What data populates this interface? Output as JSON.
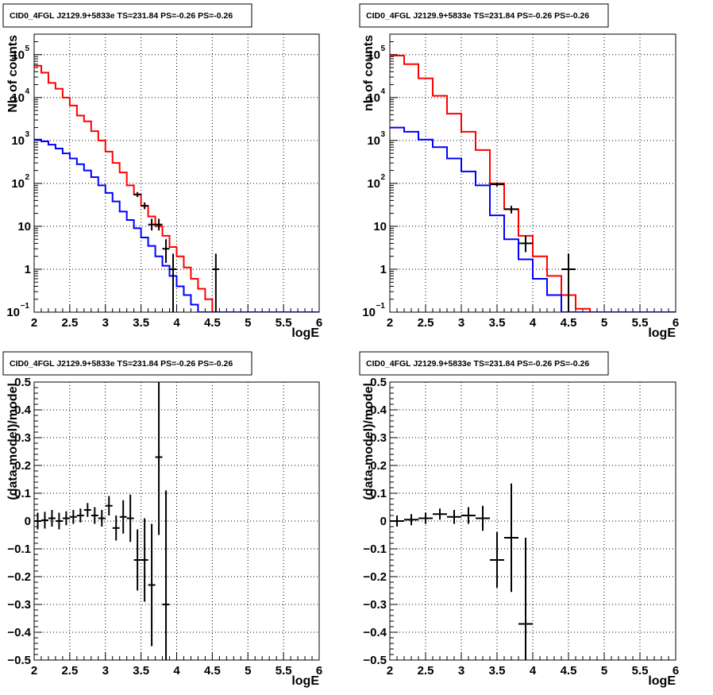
{
  "chart_data": [
    {
      "type": "line",
      "title": "CID0_4FGL J2129.9+5833e TS=231.84 PS=-0.26 PS=-0.26",
      "xlabel": "logE",
      "ylabel": "Nb of counts",
      "xlim": [
        2,
        6
      ],
      "ylim": [
        0.1,
        300000
      ],
      "yscale": "log",
      "grid": true,
      "xticks": [
        "2",
        "2.5",
        "3",
        "3.5",
        "4",
        "4.5",
        "5",
        "5.5",
        "6"
      ],
      "yticks": [
        {
          "v": 0.1,
          "label": "10",
          "sup": "−1"
        },
        {
          "v": 1,
          "label": "1",
          "sup": ""
        },
        {
          "v": 10,
          "label": "10",
          "sup": ""
        },
        {
          "v": 100,
          "label": "10",
          "sup": "2"
        },
        {
          "v": 1000,
          "label": "10",
          "sup": "3"
        },
        {
          "v": 10000,
          "label": "10",
          "sup": "4"
        },
        {
          "v": 100000,
          "label": "10",
          "sup": "5"
        }
      ],
      "bin_edges": [
        2.0,
        2.1,
        2.2,
        2.3,
        2.4,
        2.5,
        2.6,
        2.7,
        2.8,
        2.9,
        3.0,
        3.1,
        3.2,
        3.3,
        3.4,
        3.5,
        3.6,
        3.7,
        3.8,
        3.9,
        4.0,
        4.1,
        4.2,
        4.3,
        4.4,
        4.5,
        4.6,
        4.7,
        4.8,
        4.9,
        5.0,
        5.1,
        5.2,
        5.3,
        5.4,
        5.5,
        5.6,
        5.7,
        5.8,
        5.9,
        6.0
      ],
      "series": [
        {
          "color": "#ff0000",
          "kind": "hist",
          "values": [
            55000,
            38000,
            22000,
            16000,
            10000,
            6500,
            3800,
            2800,
            1650,
            1000,
            550,
            300,
            180,
            90,
            55,
            30,
            17,
            10,
            6,
            3.3,
            2,
            1.1,
            0.6,
            0.35,
            0.2,
            0.1,
            0.1,
            0.1,
            0.1,
            0.1,
            0.1,
            0.1,
            0.1,
            0.1,
            0.1,
            0.1,
            0.1,
            0.1,
            0.1,
            0.1
          ]
        },
        {
          "color": "#0000ff",
          "kind": "hist",
          "values": [
            1050,
            950,
            800,
            650,
            500,
            380,
            280,
            200,
            140,
            90,
            60,
            38,
            22,
            14,
            9,
            5.5,
            3.5,
            2,
            1.2,
            0.7,
            0.4,
            0.25,
            0.15,
            0.1,
            0.1,
            0.1,
            0.1,
            0.1,
            0.1,
            0.1,
            0.1,
            0.1,
            0.1,
            0.1,
            0.1,
            0.1,
            0.1,
            0.1,
            0.1,
            0.1
          ]
        }
      ],
      "data_points": [
        {
          "x": 3.45,
          "y": 55,
          "ylo": 48,
          "yhi": 63
        },
        {
          "x": 3.55,
          "y": 30,
          "ylo": 25,
          "yhi": 36
        },
        {
          "x": 3.65,
          "y": 11,
          "ylo": 8,
          "yhi": 15
        },
        {
          "x": 3.75,
          "y": 11,
          "ylo": 8,
          "yhi": 15
        },
        {
          "x": 3.85,
          "y": 3,
          "ylo": 1.4,
          "yhi": 5
        },
        {
          "x": 3.95,
          "y": 1,
          "ylo": 0.1,
          "yhi": 2.3
        },
        {
          "x": 4.55,
          "y": 1,
          "ylo": 0.1,
          "yhi": 2.3
        }
      ]
    },
    {
      "type": "line",
      "title": "CID0_4FGL J2129.9+5833e TS=231.84 PS=-0.26 PS=-0.26",
      "xlabel": "logE",
      "ylabel": "nb of counts",
      "xlim": [
        2,
        6
      ],
      "ylim": [
        0.1,
        300000
      ],
      "yscale": "log",
      "grid": true,
      "xticks": [
        "2",
        "2.5",
        "3",
        "3.5",
        "4",
        "4.5",
        "5",
        "5.5",
        "6"
      ],
      "yticks": [
        {
          "v": 0.1,
          "label": "10",
          "sup": "−1"
        },
        {
          "v": 1,
          "label": "1",
          "sup": ""
        },
        {
          "v": 10,
          "label": "10",
          "sup": ""
        },
        {
          "v": 100,
          "label": "10",
          "sup": "2"
        },
        {
          "v": 1000,
          "label": "10",
          "sup": "3"
        },
        {
          "v": 10000,
          "label": "10",
          "sup": "4"
        },
        {
          "v": 100000,
          "label": "10",
          "sup": "5"
        }
      ],
      "bin_edges": [
        2.0,
        2.2,
        2.4,
        2.6,
        2.8,
        3.0,
        3.2,
        3.4,
        3.6,
        3.8,
        4.0,
        4.2,
        4.4,
        4.6,
        4.8,
        5.0,
        5.2,
        5.4,
        5.6,
        5.8,
        6.0
      ],
      "series": [
        {
          "color": "#ff0000",
          "kind": "hist",
          "values": [
            95000,
            60000,
            28000,
            11000,
            4200,
            1600,
            600,
            100,
            25,
            6,
            2,
            0.7,
            0.25,
            0.12,
            0.1,
            0.1,
            0.1,
            0.1,
            0.1,
            0.1
          ]
        },
        {
          "color": "#0000ff",
          "kind": "hist",
          "values": [
            2000,
            1600,
            1050,
            700,
            380,
            190,
            90,
            18,
            5,
            1.7,
            0.6,
            0.25,
            0.1,
            0.1,
            0.1,
            0.1,
            0.1,
            0.1,
            0.1,
            0.1
          ]
        }
      ],
      "data_points": [
        {
          "x": 3.5,
          "y": 95,
          "ylo": 85,
          "yhi": 105
        },
        {
          "x": 3.7,
          "y": 25,
          "ylo": 20,
          "yhi": 30
        },
        {
          "x": 3.9,
          "y": 4,
          "ylo": 2.5,
          "yhi": 6
        },
        {
          "x": 4.5,
          "y": 1,
          "ylo": 0.1,
          "yhi": 2.3
        }
      ]
    },
    {
      "type": "scatter",
      "title": "CID0_4FGL J2129.9+5833e TS=231.84 PS=-0.26 PS=-0.26",
      "xlabel": "logE",
      "ylabel": "(data-model)/model",
      "xlim": [
        2,
        6
      ],
      "ylim": [
        -0.5,
        0.5
      ],
      "yscale": "linear",
      "grid": true,
      "xticks": [
        "2",
        "2.5",
        "3",
        "3.5",
        "4",
        "4.5",
        "5",
        "5.5",
        "6"
      ],
      "yticks": [
        {
          "v": -0.5,
          "label": "−0.5",
          "sup": ""
        },
        {
          "v": -0.4,
          "label": "−0.4",
          "sup": ""
        },
        {
          "v": -0.3,
          "label": "−0.3",
          "sup": ""
        },
        {
          "v": -0.2,
          "label": "−0.2",
          "sup": ""
        },
        {
          "v": -0.1,
          "label": "−0.1",
          "sup": ""
        },
        {
          "v": 0,
          "label": "0",
          "sup": ""
        },
        {
          "v": 0.1,
          "label": "0.1",
          "sup": ""
        },
        {
          "v": 0.2,
          "label": "0.2",
          "sup": ""
        },
        {
          "v": 0.3,
          "label": "0.3",
          "sup": ""
        },
        {
          "v": 0.4,
          "label": "0.4",
          "sup": ""
        },
        {
          "v": 0.5,
          "label": "0.5",
          "sup": ""
        }
      ],
      "bin_width": 0.1,
      "data_points": [
        {
          "x": 2.05,
          "y": 0.0,
          "err": 0.03
        },
        {
          "x": 2.15,
          "y": 0.003,
          "err": 0.03
        },
        {
          "x": 2.25,
          "y": 0.01,
          "err": 0.03
        },
        {
          "x": 2.35,
          "y": 0.0,
          "err": 0.03
        },
        {
          "x": 2.45,
          "y": 0.01,
          "err": 0.025
        },
        {
          "x": 2.55,
          "y": 0.015,
          "err": 0.025
        },
        {
          "x": 2.65,
          "y": 0.02,
          "err": 0.025
        },
        {
          "x": 2.75,
          "y": 0.04,
          "err": 0.025
        },
        {
          "x": 2.85,
          "y": 0.02,
          "err": 0.03
        },
        {
          "x": 2.95,
          "y": 0.01,
          "err": 0.03
        },
        {
          "x": 3.05,
          "y": 0.055,
          "err": 0.035
        },
        {
          "x": 3.15,
          "y": -0.025,
          "err": 0.045
        },
        {
          "x": 3.25,
          "y": 0.015,
          "err": 0.06
        },
        {
          "x": 3.35,
          "y": 0.01,
          "err": 0.085
        },
        {
          "x": 3.45,
          "y": -0.14,
          "err": 0.11
        },
        {
          "x": 3.55,
          "y": -0.14,
          "err": 0.15
        },
        {
          "x": 3.65,
          "y": -0.23,
          "err": 0.22
        },
        {
          "x": 3.75,
          "y": 0.23,
          "err": 0.28
        },
        {
          "x": 3.85,
          "y": -0.3,
          "err": 0.41
        }
      ]
    },
    {
      "type": "scatter",
      "title": "CID0_4FGL J2129.9+5833e TS=231.84 PS=-0.26 PS=-0.26",
      "xlabel": "logE",
      "ylabel": "(data-model)/model",
      "xlim": [
        2,
        6
      ],
      "ylim": [
        -0.5,
        0.5
      ],
      "yscale": "linear",
      "grid": true,
      "xticks": [
        "2",
        "2.5",
        "3",
        "3.5",
        "4",
        "4.5",
        "5",
        "5.5",
        "6"
      ],
      "yticks": [
        {
          "v": -0.5,
          "label": "−0.5",
          "sup": ""
        },
        {
          "v": -0.4,
          "label": "−0.4",
          "sup": ""
        },
        {
          "v": -0.3,
          "label": "−0.3",
          "sup": ""
        },
        {
          "v": -0.2,
          "label": "−0.2",
          "sup": ""
        },
        {
          "v": -0.1,
          "label": "−0.1",
          "sup": ""
        },
        {
          "v": 0,
          "label": "0",
          "sup": ""
        },
        {
          "v": 0.1,
          "label": "0.1",
          "sup": ""
        },
        {
          "v": 0.2,
          "label": "0.2",
          "sup": ""
        },
        {
          "v": 0.3,
          "label": "0.3",
          "sup": ""
        },
        {
          "v": 0.4,
          "label": "0.4",
          "sup": ""
        },
        {
          "v": 0.5,
          "label": "0.5",
          "sup": ""
        }
      ],
      "bin_width": 0.2,
      "data_points": [
        {
          "x": 2.1,
          "y": 0.0,
          "err": 0.02
        },
        {
          "x": 2.3,
          "y": 0.005,
          "err": 0.02
        },
        {
          "x": 2.5,
          "y": 0.01,
          "err": 0.02
        },
        {
          "x": 2.7,
          "y": 0.025,
          "err": 0.02
        },
        {
          "x": 2.9,
          "y": 0.015,
          "err": 0.025
        },
        {
          "x": 3.1,
          "y": 0.02,
          "err": 0.03
        },
        {
          "x": 3.3,
          "y": 0.01,
          "err": 0.045
        },
        {
          "x": 3.5,
          "y": -0.14,
          "err": 0.1
        },
        {
          "x": 3.7,
          "y": -0.06,
          "err": 0.195
        },
        {
          "x": 3.9,
          "y": -0.37,
          "err": 0.31
        }
      ]
    }
  ]
}
